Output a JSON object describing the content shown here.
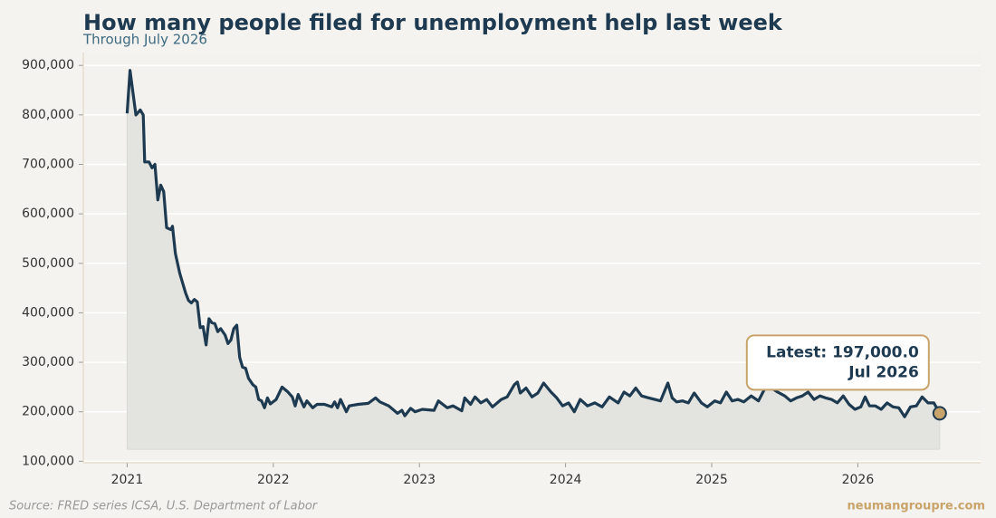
{
  "chart_data": {
    "type": "line",
    "title": "How many people filed for unemployment help last week",
    "subtitle": "Through July 2026",
    "source": "Source: FRED series ICSA, U.S. Department of Labor",
    "brand": "neumangroupre.com",
    "annotation": [
      "Latest: 197,000.0",
      "Jul 2026"
    ],
    "color": "#1e3a50",
    "fill_color": "#e3e4e0",
    "marker_color": "#c8a46a",
    "grid": true,
    "x": [
      2021.0,
      2021.02,
      2021.06,
      2021.09,
      2021.11,
      2021.12,
      2021.15,
      2021.17,
      2021.19,
      2021.21,
      2021.23,
      2021.25,
      2021.27,
      2021.3,
      2021.31,
      2021.33,
      2021.36,
      2021.4,
      2021.42,
      2021.44,
      2021.46,
      2021.48,
      2021.5,
      2021.52,
      2021.54,
      2021.56,
      2021.58,
      2021.6,
      2021.62,
      2021.64,
      2021.67,
      2021.69,
      2021.71,
      2021.73,
      2021.75,
      2021.77,
      2021.79,
      2021.81,
      2021.83,
      2021.86,
      2021.88,
      2021.9,
      2021.92,
      2021.94,
      2021.96,
      2021.98,
      2022.02,
      2022.06,
      2022.1,
      2022.13,
      2022.15,
      2022.17,
      2022.21,
      2022.23,
      2022.27,
      2022.3,
      2022.35,
      2022.4,
      2022.42,
      2022.44,
      2022.46,
      2022.5,
      2022.52,
      2022.58,
      2022.65,
      2022.7,
      2022.73,
      2022.79,
      2022.85,
      2022.88,
      2022.9,
      2022.94,
      2022.97,
      2023.02,
      2023.1,
      2023.13,
      2023.19,
      2023.23,
      2023.29,
      2023.31,
      2023.35,
      2023.38,
      2023.42,
      2023.46,
      2023.5,
      2023.56,
      2023.6,
      2023.65,
      2023.67,
      2023.69,
      2023.73,
      2023.77,
      2023.81,
      2023.85,
      2023.9,
      2023.94,
      2023.98,
      2024.02,
      2024.06,
      2024.1,
      2024.15,
      2024.2,
      2024.25,
      2024.3,
      2024.36,
      2024.4,
      2024.44,
      2024.48,
      2024.52,
      2024.57,
      2024.61,
      2024.65,
      2024.7,
      2024.73,
      2024.76,
      2024.8,
      2024.84,
      2024.88,
      2024.93,
      2024.97,
      2025.02,
      2025.06,
      2025.1,
      2025.14,
      2025.18,
      2025.22,
      2025.27,
      2025.32,
      2025.36,
      2025.4,
      2025.45,
      2025.5,
      2025.54,
      2025.58,
      2025.62,
      2025.66,
      2025.7,
      2025.74,
      2025.78,
      2025.82,
      2025.86,
      2025.9,
      2025.94,
      2025.98,
      2026.02,
      2026.05,
      2026.08,
      2026.12,
      2026.16,
      2026.2,
      2026.24,
      2026.28,
      2026.32,
      2026.36,
      2026.4,
      2026.44,
      2026.48,
      2026.52,
      2026.56
    ],
    "values": [
      803000,
      890000,
      800000,
      810000,
      800000,
      705000,
      705000,
      693000,
      700000,
      628000,
      658000,
      645000,
      572000,
      568000,
      575000,
      520000,
      480000,
      440000,
      425000,
      420000,
      427000,
      422000,
      370000,
      372000,
      335000,
      388000,
      380000,
      378000,
      362000,
      368000,
      355000,
      338000,
      345000,
      368000,
      375000,
      310000,
      290000,
      288000,
      268000,
      255000,
      250000,
      225000,
      222000,
      208000,
      228000,
      216000,
      225000,
      250000,
      240000,
      230000,
      212000,
      235000,
      210000,
      222000,
      208000,
      215000,
      215000,
      210000,
      220000,
      208000,
      225000,
      200000,
      212000,
      215000,
      217000,
      228000,
      220000,
      212000,
      197000,
      203000,
      192000,
      207000,
      200000,
      205000,
      203000,
      222000,
      208000,
      212000,
      202000,
      228000,
      215000,
      230000,
      218000,
      225000,
      210000,
      225000,
      230000,
      255000,
      260000,
      238000,
      248000,
      230000,
      238000,
      258000,
      240000,
      228000,
      212000,
      218000,
      200000,
      225000,
      212000,
      218000,
      210000,
      230000,
      218000,
      240000,
      232000,
      248000,
      232000,
      228000,
      225000,
      222000,
      258000,
      228000,
      220000,
      222000,
      218000,
      238000,
      218000,
      210000,
      222000,
      218000,
      240000,
      222000,
      225000,
      220000,
      232000,
      222000,
      245000,
      250000,
      240000,
      232000,
      222000,
      228000,
      232000,
      240000,
      225000,
      232000,
      228000,
      225000,
      218000,
      232000,
      215000,
      205000,
      210000,
      230000,
      212000,
      212000,
      205000,
      218000,
      210000,
      208000,
      190000,
      210000,
      212000,
      230000,
      218000,
      218000,
      197000
    ],
    "xlim": [
      2020.7,
      2026.84
    ],
    "xticks": [
      2021,
      2022,
      2023,
      2024,
      2025,
      2026
    ],
    "ylim": [
      97000,
      926000
    ],
    "yticks": [
      {
        "value": 100000,
        "label": "100,000"
      },
      {
        "value": 200000,
        "label": "200,000"
      },
      {
        "value": 300000,
        "label": "300,000"
      },
      {
        "value": 400000,
        "label": "400,000"
      },
      {
        "value": 500000,
        "label": "500,000"
      },
      {
        "value": 600000,
        "label": "600,000"
      },
      {
        "value": 700000,
        "label": "700,000"
      },
      {
        "value": 800000,
        "label": "800,000"
      },
      {
        "value": 900000,
        "label": "900,000"
      }
    ]
  }
}
